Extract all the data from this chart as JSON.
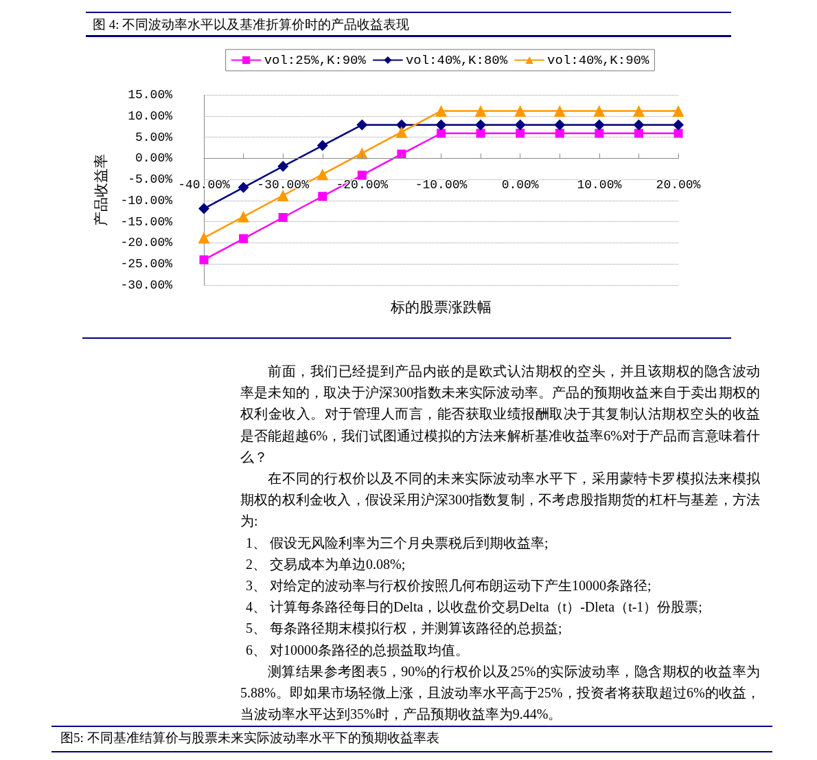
{
  "chart_data": {
    "type": "line",
    "title": "图 4: 不同波动率水平以及基准折算价时的产品收益表现",
    "xlabel": "标的股票涨跌幅",
    "ylabel": "产品收益率",
    "categories": [
      "-40.00%",
      null,
      "-30.00%",
      null,
      "-20.00%",
      null,
      "-10.00%",
      null,
      "0.00%",
      null,
      "10.00%",
      null,
      "20.00%"
    ],
    "series": [
      {
        "name": "vol:25%,K:90%",
        "color": "#ff00ff",
        "marker": "square",
        "values": [
          -24,
          -19,
          -14,
          -9,
          -4,
          1,
          5.9,
          5.9,
          5.9,
          5.9,
          5.9,
          5.9,
          5.9
        ]
      },
      {
        "name": "vol:40%,K:80%",
        "color": "#000080",
        "marker": "diamond",
        "values": [
          -11.9,
          -6.9,
          -1.9,
          3,
          7.9,
          7.9,
          7.9,
          7.9,
          7.9,
          7.9,
          7.9,
          7.9,
          7.9
        ]
      },
      {
        "name": "vol:40%,K:90%",
        "color": "#ff9900",
        "marker": "triangle",
        "values": [
          -18.8,
          -13.8,
          -8.8,
          -3.8,
          1.2,
          6.2,
          11.2,
          11.2,
          11.2,
          11.2,
          11.2,
          11.2,
          11.2
        ]
      }
    ],
    "ylim": [
      -30,
      15
    ],
    "yticks": [
      {
        "value": -30,
        "label": "-30.00%"
      },
      {
        "value": -25,
        "label": "-25.00%"
      },
      {
        "value": -20,
        "label": "-20.00%"
      },
      {
        "value": -15,
        "label": "-15.00%"
      },
      {
        "value": -10,
        "label": "-10.00%"
      },
      {
        "value": -5,
        "label": "-5.00%"
      },
      {
        "value": 0,
        "label": "0.00%"
      },
      {
        "value": 5,
        "label": "5.00%"
      },
      {
        "value": 10,
        "label": "10.00%"
      },
      {
        "value": 15,
        "label": "15.00%"
      }
    ],
    "grid": "y",
    "legend": "top",
    "line_style": "solid",
    "annotations": [
      "前面，我们已经提到产品内嵌的是欧式认沽期权的空头，并且该期权的隐含波动率是未知的，取决于沪深300指数未来实际波动率。产品的预期收益来自于卖出期权的权利金收入。对于管理人而言，能否获取业绩报酬取决于其复制认沽期权空头的收益是否能超越6%，我们试图通过模拟的方法来解析基准收益率6%对于产品而言意味着什么？",
      "在不同的行权价以及不同的未来实际波动率水平下，采用蒙特卡罗模拟法来模拟期权的权利金收入，假设采用沪深300指数复制，不考虑股指期货的杠杆与基差，方法为:",
      "1、 假设无风险利率为三个月央票税后到期收益率;",
      "2、 交易成本为单边0.08%;",
      "3、 对给定的波动率与行权价按照几何布朗运动下产生10000条路径;",
      "4、 计算每条路径每日的Delta，以收盘价交易Delta（t）-Dleta（t-1）份股票;",
      "5、 每条路径期末模拟行权，并测算该路径的总损益;",
      "6、 对10000条路径的总损益取均值。",
      "测算结果参考图表5，90%的行权价以及25%的实际波动率，隐含期权的收益率为5.88%。即如果市场轻微上涨，且波动率水平高于25%，投资者将获取超过6%的收益，当波动率水平达到35%时，产品预期收益率为9.44%。",
      "图5: 不同基准结算价与股票未来实际波动率水平下的预期收益率表"
    ]
  }
}
